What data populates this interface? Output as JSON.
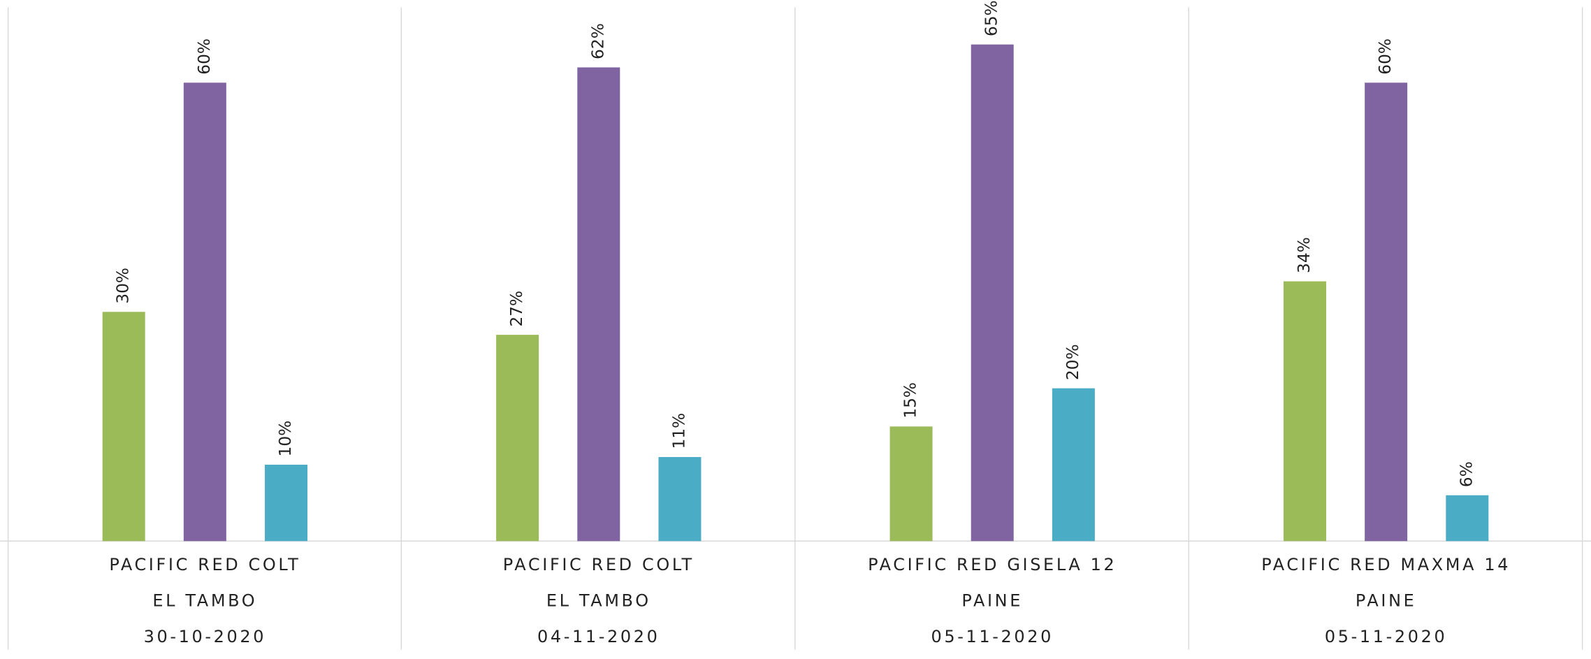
{
  "chart_data": {
    "type": "bar",
    "categories": [
      [
        "PACIFIC RED COLT",
        "EL TAMBO",
        "30-10-2020"
      ],
      [
        "PACIFIC RED COLT",
        "EL TAMBO",
        "04-11-2020"
      ],
      [
        "PACIFIC RED GISELA 12",
        "PAINE",
        "05-11-2020"
      ],
      [
        "PACIFIC RED MAXMA 14",
        "PAINE",
        "05-11-2020"
      ]
    ],
    "series": [
      {
        "color": "#9bbb59",
        "values": [
          30,
          27,
          15,
          34
        ],
        "value_labels": [
          "30%",
          "27%",
          "15%",
          "34%"
        ]
      },
      {
        "color": "#8064a2",
        "values": [
          60,
          62,
          65,
          60
        ],
        "value_labels": [
          "60%",
          "62%",
          "65%",
          "60%"
        ]
      },
      {
        "color": "#4bacc6",
        "values": [
          10,
          11,
          20,
          6
        ],
        "value_labels": [
          "10%",
          "11%",
          "20%",
          "6%"
        ]
      }
    ],
    "ylim": [
      0,
      70
    ]
  }
}
